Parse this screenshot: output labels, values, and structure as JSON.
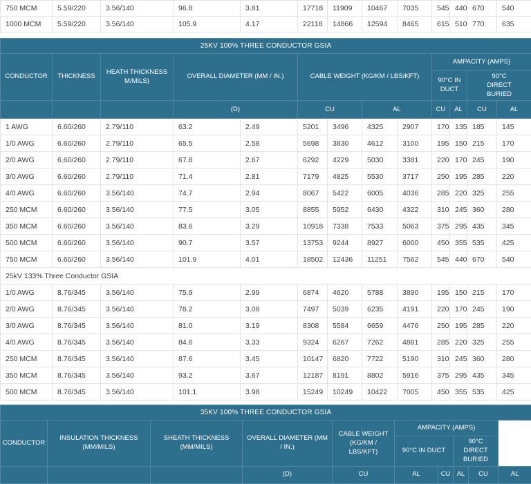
{
  "colors": {
    "header_teal": "#2e6f8d",
    "header_border": "#4f87a4",
    "row_border": "#e3e3e3",
    "data_text": "#3c3c3c"
  },
  "top_table": {
    "rows": [
      [
        "750 MCM",
        "5.59/220",
        "3.56/140",
        "96.8",
        "3.81",
        "17718",
        "11909",
        "10467",
        "7035",
        "545",
        "440",
        "670",
        "540"
      ],
      [
        "1000 MCM",
        "5.59/220",
        "3.56/140",
        "105.9",
        "4.17",
        "22118",
        "14866",
        "12594",
        "8465",
        "615",
        "510",
        "770",
        "635"
      ]
    ]
  },
  "table_25kv": {
    "banner": "25KV 100% THREE CONDUCTOR GSIA",
    "headers": {
      "conductor": "CONDUCTOR",
      "thickness": "THICKNESS",
      "heath_thickness": "HEATH THICKNESS M/MILS)",
      "overall_diameter": "OVERALL DIAMETER (MM / IN.)",
      "cable_weight": "CABLE WEIGHT (KG/KM / LBS/KFT)",
      "ampacity": "AMPACITY (AMPS)",
      "in_duct": "90°C IN DUCT",
      "direct_buried": "90°C DIRECT BURIED",
      "d": "(D)",
      "cu": "CU",
      "al": "AL"
    },
    "rows_100": [
      [
        "1 AWG",
        "6.60/260",
        "2.79/110",
        "63.2",
        "2.49",
        "5201",
        "3496",
        "4325",
        "2907",
        "170",
        "135",
        "185",
        "145"
      ],
      [
        "1/0 AWG",
        "6.60/260",
        "2.79/110",
        "65.5",
        "2.58",
        "5698",
        "3830",
        "4612",
        "3100",
        "195",
        "150",
        "215",
        "170"
      ],
      [
        "2/0 AWG",
        "6.60/260",
        "2.79/110",
        "67.8",
        "2.67",
        "6292",
        "4229",
        "5030",
        "3381",
        "220",
        "170",
        "245",
        "190"
      ],
      [
        "3/0 AWG",
        "6.60/260",
        "2.79/110",
        "71.4",
        "2.81",
        "7179",
        "4825",
        "5530",
        "3717",
        "250",
        "195",
        "285",
        "220"
      ],
      [
        "4/0 AWG",
        "6.60/260",
        "3.56/140",
        "74.7",
        "2.94",
        "8067",
        "5422",
        "6005",
        "4036",
        "285",
        "220",
        "325",
        "255"
      ],
      [
        "250 MCM",
        "6.60/260",
        "3.56/140",
        "77.5",
        "3.05",
        "8855",
        "5952",
        "6430",
        "4322",
        "310",
        "245",
        "360",
        "280"
      ],
      [
        "350 MCM",
        "6.60/260",
        "3.56/140",
        "83.6",
        "3.29",
        "10918",
        "7338",
        "7533",
        "5063",
        "375",
        "295",
        "435",
        "345"
      ],
      [
        "500 MCM",
        "6.60/260",
        "3.56/140",
        "90.7",
        "3.57",
        "13753",
        "9244",
        "8927",
        "6000",
        "450",
        "355",
        "535",
        "425"
      ],
      [
        "750 MCM",
        "6.60/260",
        "3.56/140",
        "101.9",
        "4.01",
        "18502",
        "12436",
        "11251",
        "7562",
        "545",
        "440",
        "670",
        "540"
      ]
    ],
    "subsection_label": "25kV 133% Three Conductor GSIA",
    "rows_133": [
      [
        "1/0 AWG",
        "8.76/345",
        "3.56/140",
        "75.9",
        "2.99",
        "6874",
        "4620",
        "5788",
        "3890",
        "195",
        "150",
        "215",
        "170"
      ],
      [
        "2/0 AWG",
        "8.76/345",
        "3.56/140",
        "78.2",
        "3.08",
        "7497",
        "5039",
        "6235",
        "4191",
        "220",
        "170",
        "245",
        "190"
      ],
      [
        "3/0 AWG",
        "8.76/345",
        "3.56/140",
        "81.0",
        "3.19",
        "8308",
        "5584",
        "6659",
        "4476",
        "250",
        "195",
        "285",
        "220"
      ],
      [
        "4/0 AWG",
        "8.76/345",
        "3.56/140",
        "84.6",
        "3.33",
        "9324",
        "6267",
        "7262",
        "4881",
        "285",
        "220",
        "325",
        "255"
      ],
      [
        "250 MCM",
        "8.76/345",
        "3.56/140",
        "87.6",
        "3.45",
        "10147",
        "6820",
        "7722",
        "5190",
        "310",
        "245",
        "360",
        "280"
      ],
      [
        "350 MCM",
        "8.76/345",
        "3.56/140",
        "93.2",
        "3.67",
        "12187",
        "8191",
        "8802",
        "5916",
        "375",
        "295",
        "435",
        "345"
      ],
      [
        "500 MCM",
        "8.76/345",
        "3.56/140",
        "101.1",
        "3.98",
        "15249",
        "10249",
        "10422",
        "7005",
        "450",
        "355",
        "535",
        "425"
      ]
    ]
  },
  "table_35kv": {
    "banner": "35KV 100% THREE CONDUCTOR GSIA",
    "headers": {
      "conductor": "CONDUCTOR",
      "insulation_thickness": "INSULATION THICKNESS (MM/MILS)",
      "sheath_thickness": "SHEATH THICKNESS (MM/MILS)",
      "overall_diameter": "OVERALL DIAMETER (MM / IN.)",
      "cable_weight": "CABLE WEIGHT (KG/KM / LBS/KFT)",
      "ampacity": "AMPACITY (AMPS)",
      "in_duct": "90°C IN DUCT",
      "direct_buried": "90°C DIRECT BURIED",
      "d": "(D)",
      "cu": "CU",
      "al": "AL"
    }
  }
}
